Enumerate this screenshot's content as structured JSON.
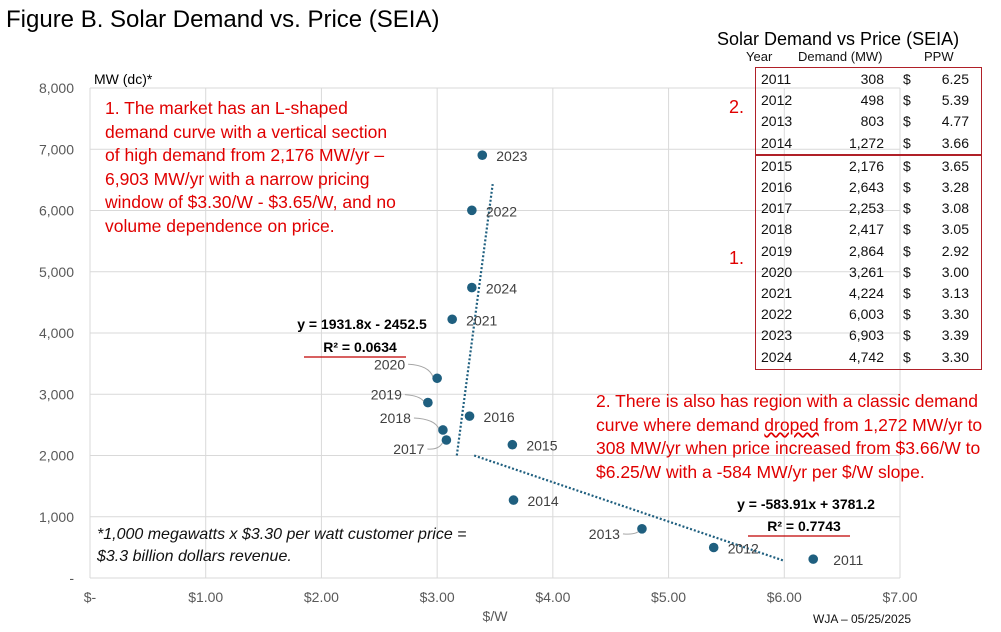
{
  "figure_title": "Figure B. Solar Demand vs. Price (SEIA)",
  "chart_data": {
    "type": "scatter",
    "ylabel": "MW (dc)*",
    "xlabel": "$/W",
    "xlim": [
      0,
      7
    ],
    "ylim": [
      0,
      8000
    ],
    "x_ticks": [
      "$-",
      "$1.00",
      "$2.00",
      "$3.00",
      "$4.00",
      "$5.00",
      "$6.00",
      "$7.00"
    ],
    "y_ticks": [
      "-",
      "1,000",
      "2,000",
      "3,000",
      "4,000",
      "5,000",
      "6,000",
      "7,000",
      "8,000"
    ],
    "grid": true,
    "marker_color": "#1f5f7f",
    "points": [
      {
        "label": "2011",
        "x": 6.25,
        "y": 308
      },
      {
        "label": "2012",
        "x": 5.39,
        "y": 498
      },
      {
        "label": "2013",
        "x": 4.77,
        "y": 803
      },
      {
        "label": "2014",
        "x": 3.66,
        "y": 1272
      },
      {
        "label": "2015",
        "x": 3.65,
        "y": 2176
      },
      {
        "label": "2016",
        "x": 3.28,
        "y": 2643
      },
      {
        "label": "2017",
        "x": 3.08,
        "y": 2253
      },
      {
        "label": "2018",
        "x": 3.05,
        "y": 2417
      },
      {
        "label": "2019",
        "x": 2.92,
        "y": 2864
      },
      {
        "label": "2020",
        "x": 3.0,
        "y": 3261
      },
      {
        "label": "2021",
        "x": 3.13,
        "y": 4224
      },
      {
        "label": "2022",
        "x": 3.3,
        "y": 6003
      },
      {
        "label": "2023",
        "x": 3.39,
        "y": 6903
      },
      {
        "label": "2024",
        "x": 3.3,
        "y": 4742
      }
    ],
    "trendlines": [
      {
        "equation": "y = 1931.8x - 2452.5",
        "r2": "R² = 0.0634",
        "from": [
          3.17,
          2000
        ],
        "to": [
          3.48,
          6430
        ]
      },
      {
        "equation": "y = -583.91x + 3781.2",
        "r2": "R² = 0.7743",
        "from": [
          3.32,
          2000
        ],
        "to": [
          6.0,
          280
        ]
      }
    ]
  },
  "annotations": {
    "note1": "1. The market has an L-shaped demand curve with a vertical section of high demand from 2,176 MW/yr – 6,903 MW/yr with a narrow pricing window of $3.30/W - $3.65/W, and no volume dependence on price.",
    "note2_before": "2. There is also has region with a classic demand curve where demand ",
    "note2_word": "droped",
    "note2_after": " from 1,272 MW/yr to 308 MW/yr when price increased from $3.66/W to $6.25/W with a -584 MW/yr per $/W slope.",
    "footnote": "*1,000 megawatts x $3.30 per watt customer price = $3.3 billion dollars revenue.",
    "credit": "WJA – 05/25/2025",
    "accent_color": "#e00000"
  },
  "table": {
    "title": "Solar Demand vs Price (SEIA)",
    "headers": [
      "Year",
      "Demand (MW)",
      "PPW"
    ],
    "group_labels": [
      "2.",
      "1."
    ],
    "groups": [
      [
        [
          "2011",
          "308",
          "$",
          "6.25"
        ],
        [
          "2012",
          "498",
          "$",
          "5.39"
        ],
        [
          "2013",
          "803",
          "$",
          "4.77"
        ],
        [
          "2014",
          "1,272",
          "$",
          "3.66"
        ]
      ],
      [
        [
          "2015",
          "2,176",
          "$",
          "3.65"
        ],
        [
          "2016",
          "2,643",
          "$",
          "3.28"
        ],
        [
          "2017",
          "2,253",
          "$",
          "3.08"
        ],
        [
          "2018",
          "2,417",
          "$",
          "3.05"
        ],
        [
          "2019",
          "2,864",
          "$",
          "2.92"
        ],
        [
          "2020",
          "3,261",
          "$",
          "3.00"
        ],
        [
          "2021",
          "4,224",
          "$",
          "3.13"
        ],
        [
          "2022",
          "6,003",
          "$",
          "3.30"
        ],
        [
          "2023",
          "6,903",
          "$",
          "3.39"
        ],
        [
          "2024",
          "4,742",
          "$",
          "3.30"
        ]
      ]
    ]
  }
}
